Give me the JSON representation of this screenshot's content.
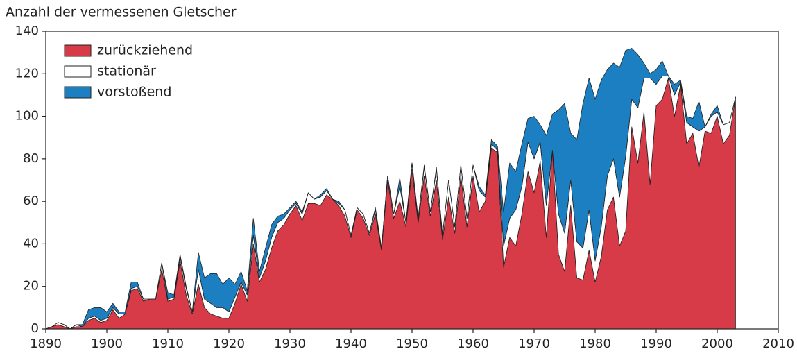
{
  "chart_data": {
    "type": "area",
    "stacked": true,
    "title": "Anzahl der vermessenen Gletscher",
    "x": [
      1890,
      1891,
      1892,
      1893,
      1894,
      1895,
      1896,
      1897,
      1898,
      1899,
      1900,
      1901,
      1902,
      1903,
      1904,
      1905,
      1906,
      1907,
      1908,
      1909,
      1910,
      1911,
      1912,
      1913,
      1914,
      1915,
      1916,
      1917,
      1918,
      1919,
      1920,
      1921,
      1922,
      1923,
      1924,
      1925,
      1926,
      1927,
      1928,
      1929,
      1930,
      1931,
      1932,
      1933,
      1934,
      1935,
      1936,
      1937,
      1938,
      1939,
      1940,
      1941,
      1942,
      1943,
      1944,
      1945,
      1946,
      1947,
      1948,
      1949,
      1950,
      1951,
      1952,
      1953,
      1954,
      1955,
      1956,
      1957,
      1958,
      1959,
      1960,
      1961,
      1962,
      1963,
      1964,
      1965,
      1966,
      1967,
      1968,
      1969,
      1970,
      1971,
      1972,
      1973,
      1974,
      1975,
      1976,
      1977,
      1978,
      1979,
      1980,
      1981,
      1982,
      1983,
      1984,
      1985,
      1986,
      1987,
      1988,
      1989,
      1990,
      1991,
      1992,
      1993,
      1994,
      1995,
      1996,
      1997,
      1998,
      1999,
      2000,
      2001,
      2002,
      2003
    ],
    "series": [
      {
        "name": "zurückziehend",
        "color": "#d63b47",
        "values": [
          0,
          1,
          2,
          1,
          0,
          1,
          1,
          4,
          5,
          3,
          4,
          9,
          5,
          7,
          18,
          19,
          13,
          14,
          14,
          28,
          13,
          14,
          32,
          16,
          7,
          21,
          10,
          7,
          6,
          5,
          5,
          12,
          21,
          13,
          40,
          22,
          28,
          38,
          46,
          49,
          54,
          58,
          51,
          59,
          59,
          58,
          63,
          61,
          58,
          53,
          43,
          56,
          52,
          44,
          54,
          37,
          70,
          52,
          60,
          48,
          75,
          50,
          72,
          53,
          70,
          42,
          62,
          45,
          72,
          48,
          72,
          55,
          60,
          85,
          83,
          29,
          43,
          39,
          54,
          74,
          64,
          79,
          43,
          84,
          35,
          27,
          58,
          24,
          23,
          37,
          22,
          34,
          56,
          62,
          39,
          46,
          95,
          78,
          102,
          68,
          105,
          108,
          118,
          100,
          115,
          87,
          92,
          76,
          93,
          92,
          100,
          87,
          91,
          109
        ]
      },
      {
        "name": "stationär",
        "color": "#ffffff",
        "values": [
          0,
          0,
          1,
          1,
          0,
          1,
          0,
          1,
          1,
          1,
          1,
          1,
          2,
          0,
          1,
          1,
          1,
          0,
          0,
          3,
          1,
          1,
          2,
          3,
          1,
          7,
          4,
          5,
          4,
          5,
          3,
          3,
          1,
          3,
          4,
          2,
          4,
          5,
          4,
          3,
          2,
          1,
          3,
          5,
          2,
          4,
          2,
          0,
          1,
          3,
          1,
          1,
          2,
          1,
          2,
          1,
          2,
          2,
          7,
          2,
          3,
          2,
          4,
          2,
          5,
          2,
          8,
          3,
          5,
          4,
          5,
          10,
          2,
          2,
          1,
          10,
          9,
          17,
          13,
          14,
          16,
          9,
          15,
          0,
          19,
          18,
          12,
          17,
          15,
          19,
          10,
          14,
          16,
          18,
          23,
          35,
          13,
          26,
          16,
          50,
          10,
          11,
          1,
          10,
          1,
          10,
          3,
          17,
          2,
          8,
          2,
          9,
          6,
          0
        ]
      },
      {
        "name": "vorstoßend",
        "color": "#1b7fc1",
        "values": [
          0,
          0,
          0,
          0,
          0,
          0,
          1,
          4,
          4,
          6,
          3,
          2,
          1,
          1,
          3,
          2,
          0,
          0,
          0,
          0,
          3,
          1,
          1,
          1,
          0,
          8,
          10,
          14,
          16,
          11,
          16,
          6,
          5,
          2,
          8,
          3,
          6,
          6,
          3,
          2,
          1,
          1,
          1,
          0,
          0,
          1,
          1,
          0,
          1,
          0,
          0,
          0,
          0,
          0,
          1,
          0,
          0,
          0,
          4,
          0,
          0,
          0,
          1,
          0,
          1,
          0,
          0,
          0,
          0,
          0,
          0,
          2,
          1,
          2,
          2,
          16,
          26,
          18,
          20,
          11,
          20,
          8,
          33,
          17,
          49,
          61,
          22,
          48,
          68,
          62,
          76,
          69,
          50,
          45,
          61,
          50,
          24,
          25,
          7,
          2,
          7,
          7,
          0,
          5,
          1,
          3,
          4,
          14,
          0,
          1,
          3,
          0,
          0,
          0
        ]
      }
    ],
    "xlim": [
      1890,
      2010
    ],
    "xticks": [
      1890,
      1900,
      1910,
      1920,
      1930,
      1940,
      1950,
      1960,
      1970,
      1980,
      1990,
      2000,
      2010
    ],
    "ylim": [
      0,
      140
    ],
    "yticks": [
      0,
      20,
      40,
      60,
      80,
      100,
      120,
      140
    ],
    "legend": "upper-left",
    "grid": false
  }
}
